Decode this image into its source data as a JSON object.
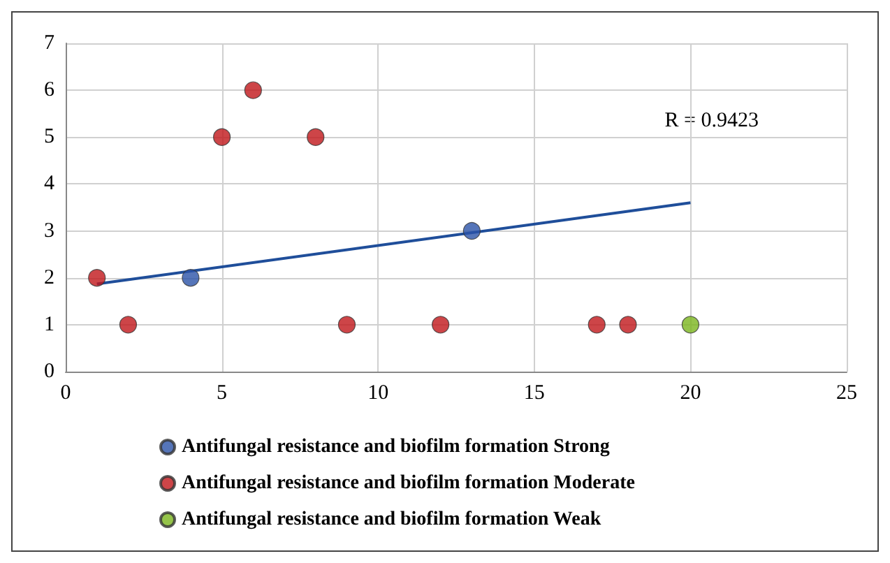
{
  "chart_data": {
    "type": "scatter",
    "xlim": [
      0,
      25
    ],
    "xticks": [
      0,
      5,
      10,
      15,
      20,
      25
    ],
    "ylim": [
      0,
      7
    ],
    "yticks": [
      0,
      1,
      2,
      3,
      4,
      5,
      6,
      7
    ],
    "grid": true,
    "legend": "bottom",
    "marker": "circle",
    "annotations": [
      "R = 0.9423"
    ],
    "series": [
      {
        "name": "Antifungal resistance and biofilm formation Strong",
        "color": "#2a52a8",
        "x": [
          4,
          13
        ],
        "values": [
          2,
          3
        ]
      },
      {
        "name": "Antifungal resistance and biofilm formation Moderate",
        "color": "#c0171a",
        "x": [
          1,
          2,
          5,
          6,
          8,
          9,
          12,
          17,
          18
        ],
        "values": [
          2,
          1,
          5,
          6,
          5,
          1,
          1,
          1,
          1
        ]
      },
      {
        "name": "Antifungal resistance and biofilm formation Weak",
        "color": "#7ab51d",
        "x": [
          20
        ],
        "values": [
          1
        ]
      },
      {
        "type": "line",
        "color": "#1f4e9a",
        "x": [
          1,
          20
        ],
        "values": [
          1.87,
          3.6
        ],
        "marker": "none",
        "line_style": "solid"
      }
    ]
  }
}
